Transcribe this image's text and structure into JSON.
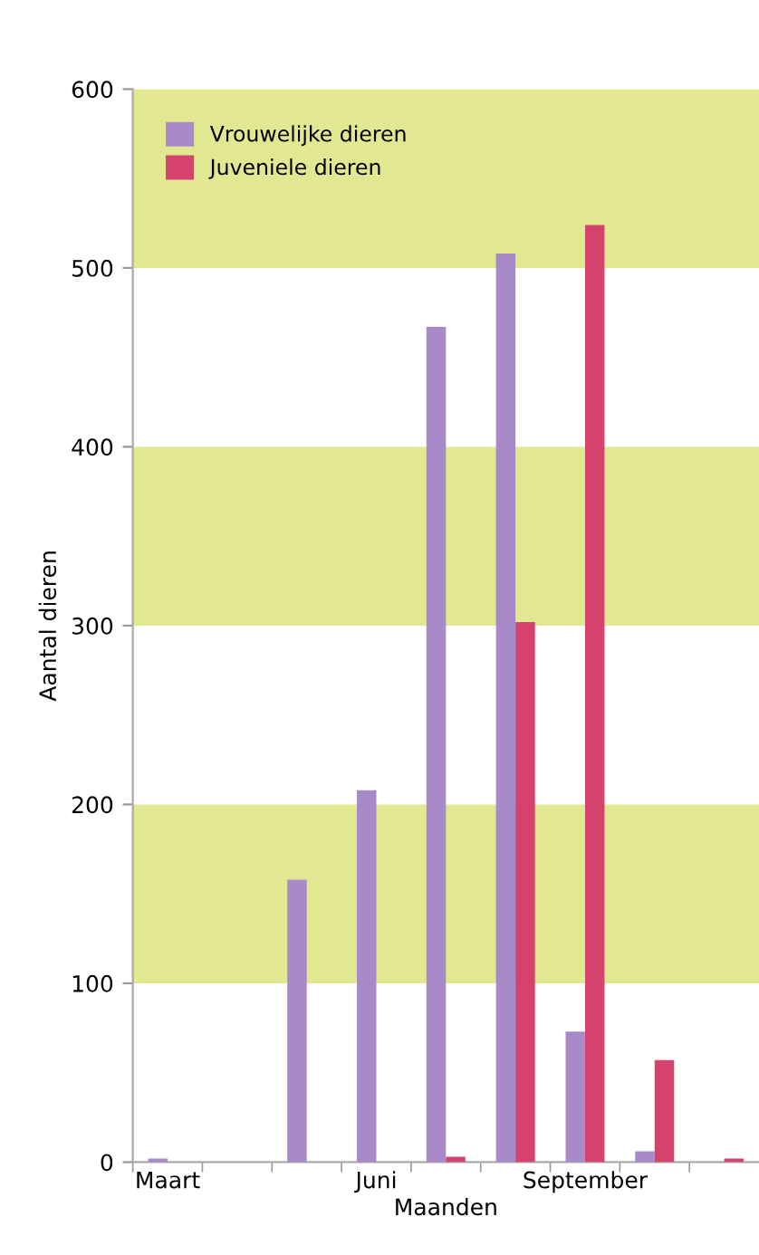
{
  "chart_data": {
    "type": "bar",
    "xlabel": "Maanden",
    "ylabel": "Aantal dieren",
    "categories": [
      "Maart",
      null,
      null,
      "Juni",
      null,
      null,
      "September",
      null,
      null
    ],
    "series": [
      {
        "name": "Vrouwelijke dieren",
        "color": "#a98ac8",
        "values": [
          2,
          0,
          158,
          208,
          467,
          508,
          73,
          6,
          0
        ]
      },
      {
        "name": "Juveniele dieren",
        "color": "#d6426e",
        "values": [
          0,
          0,
          0,
          0,
          3,
          302,
          524,
          57,
          2
        ]
      }
    ],
    "ylim": [
      0,
      600
    ],
    "yticks": [
      0,
      100,
      200,
      300,
      400,
      500,
      600
    ],
    "bands": [
      {
        "axis": "y",
        "from": 100,
        "to": 200,
        "color": "#e1e891"
      },
      {
        "axis": "y",
        "from": 300,
        "to": 400,
        "color": "#e1e891"
      },
      {
        "axis": "y",
        "from": 500,
        "to": 600,
        "color": "#e1e891"
      }
    ],
    "grid": false,
    "legend": "top left"
  }
}
